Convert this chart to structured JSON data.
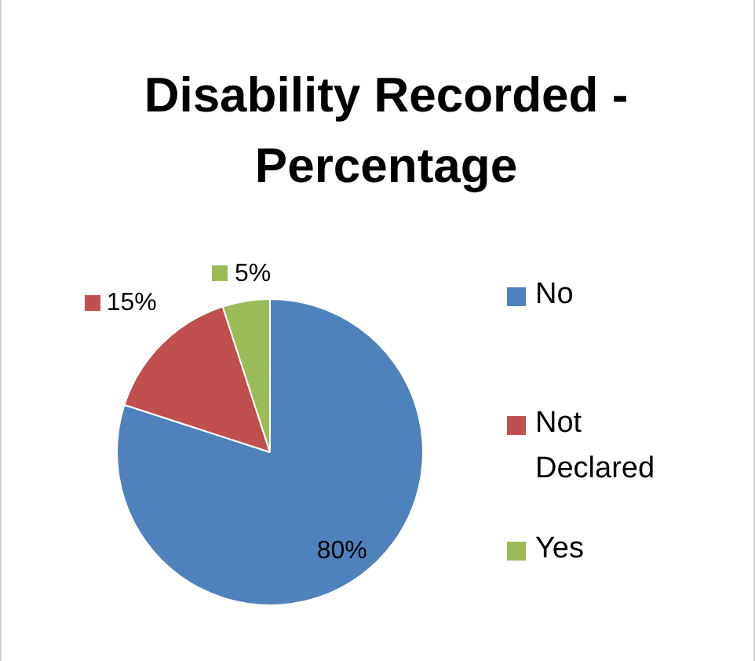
{
  "chart_data": {
    "type": "pie",
    "title": "Disability Recorded - Percentage",
    "categories": [
      "No",
      "Not Declared",
      "Yes"
    ],
    "values": [
      80,
      15,
      5
    ],
    "colors": [
      "#4f81bd",
      "#c0504d",
      "#9bbb59"
    ],
    "value_labels": [
      "80%",
      "15%",
      "5%"
    ],
    "legend": "right"
  }
}
